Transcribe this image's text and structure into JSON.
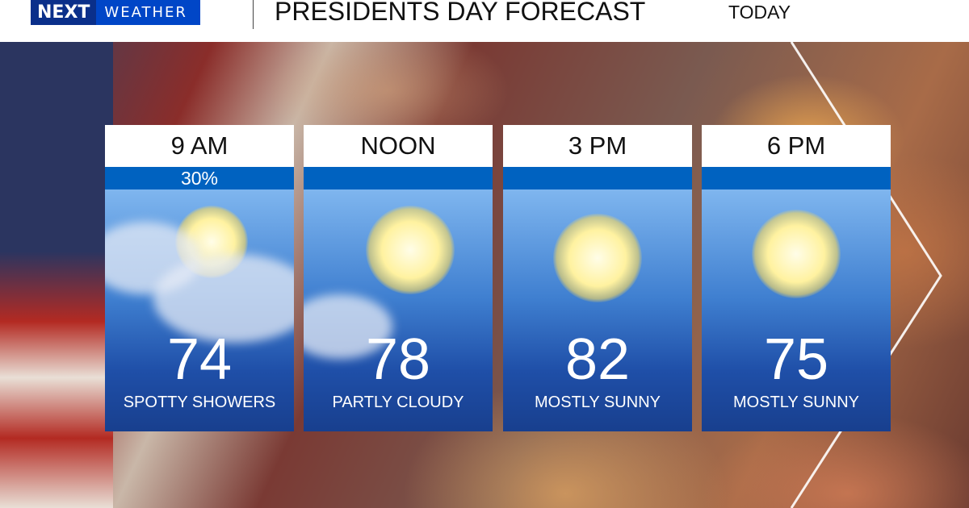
{
  "header": {
    "logo_brand": "NEXT",
    "logo_sub": "WEATHER",
    "title": "PRESIDENTS DAY FORECAST",
    "subtitle": "TODAY"
  },
  "colors": {
    "logo_blue": "#0046c7",
    "band_blue": "#0062c0"
  },
  "cards": [
    {
      "time": "9 AM",
      "precip": "30%",
      "temp": "74",
      "condition": "SPOTTY SHOWERS",
      "icon": "sun-behind-clouds-icon"
    },
    {
      "time": "NOON",
      "precip": "",
      "temp": "78",
      "condition": "PARTLY CLOUDY",
      "icon": "sun-icon"
    },
    {
      "time": "3 PM",
      "precip": "",
      "temp": "82",
      "condition": "MOSTLY SUNNY",
      "icon": "sun-icon"
    },
    {
      "time": "6 PM",
      "precip": "",
      "temp": "75",
      "condition": "MOSTLY SUNNY",
      "icon": "sun-icon"
    }
  ]
}
